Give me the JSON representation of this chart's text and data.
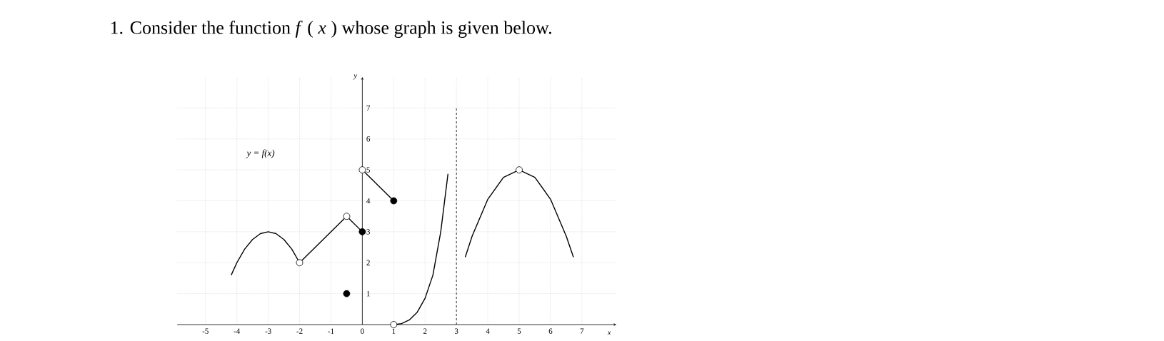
{
  "chart_data": {
    "type": "line",
    "title": "1. Consider the function *f* ( *x* ) whose graph is given below.",
    "xlabel": "x",
    "ylabel": "y",
    "annotations": [
      "y = f(x)"
    ],
    "xlim": [
      -5.9,
      8.1
    ],
    "ylim": [
      0,
      8
    ],
    "xticks": [
      -5,
      -4,
      -3,
      -2,
      -1,
      0,
      1,
      2,
      3,
      4,
      5,
      6,
      7
    ],
    "yticks": [
      1,
      2,
      3,
      4,
      5,
      6,
      7
    ],
    "grid": true,
    "ref_lines": [
      {
        "axis": "x",
        "value": 3,
        "line_style": "dashed"
      }
    ],
    "series": [
      {
        "color": "#000000",
        "x": [
          -4.18,
          -4,
          -3.75,
          -3.5,
          -3.25,
          -3,
          -2.75,
          -2.5,
          -2.25,
          -2
        ],
        "values": [
          1.6,
          2.0,
          2.44,
          2.75,
          2.94,
          3,
          2.94,
          2.75,
          2.44,
          2
        ]
      },
      {
        "color": "#000000",
        "x": [
          -2,
          -0.5,
          0
        ],
        "values": [
          2,
          3.5,
          3
        ]
      },
      {
        "color": "#000000",
        "x": [
          0,
          1
        ],
        "values": [
          5,
          4
        ]
      },
      {
        "color": "#000000",
        "x": [
          1,
          1.25,
          1.5,
          1.75,
          2,
          2.25,
          2.5,
          2.73
        ],
        "values": [
          0,
          0.03,
          0.15,
          0.4,
          0.85,
          1.6,
          3.0,
          4.87
        ]
      },
      {
        "color": "#000000",
        "x": [
          3.28,
          3.5,
          4,
          4.5,
          5,
          5.5,
          6,
          6.5,
          6.73
        ],
        "values": [
          2.18,
          2.86,
          4.05,
          4.76,
          5,
          4.76,
          4.05,
          2.86,
          2.18
        ]
      },
      {
        "type": "scatter",
        "color": "#000000",
        "x": [
          -0.5,
          0,
          1
        ],
        "values": [
          1,
          3,
          4
        ]
      },
      {
        "type": "scatter",
        "color": "#ffffff",
        "x": [
          -2,
          -0.5,
          0,
          1,
          5
        ],
        "values": [
          2,
          3.5,
          5,
          0,
          5
        ]
      }
    ]
  }
}
